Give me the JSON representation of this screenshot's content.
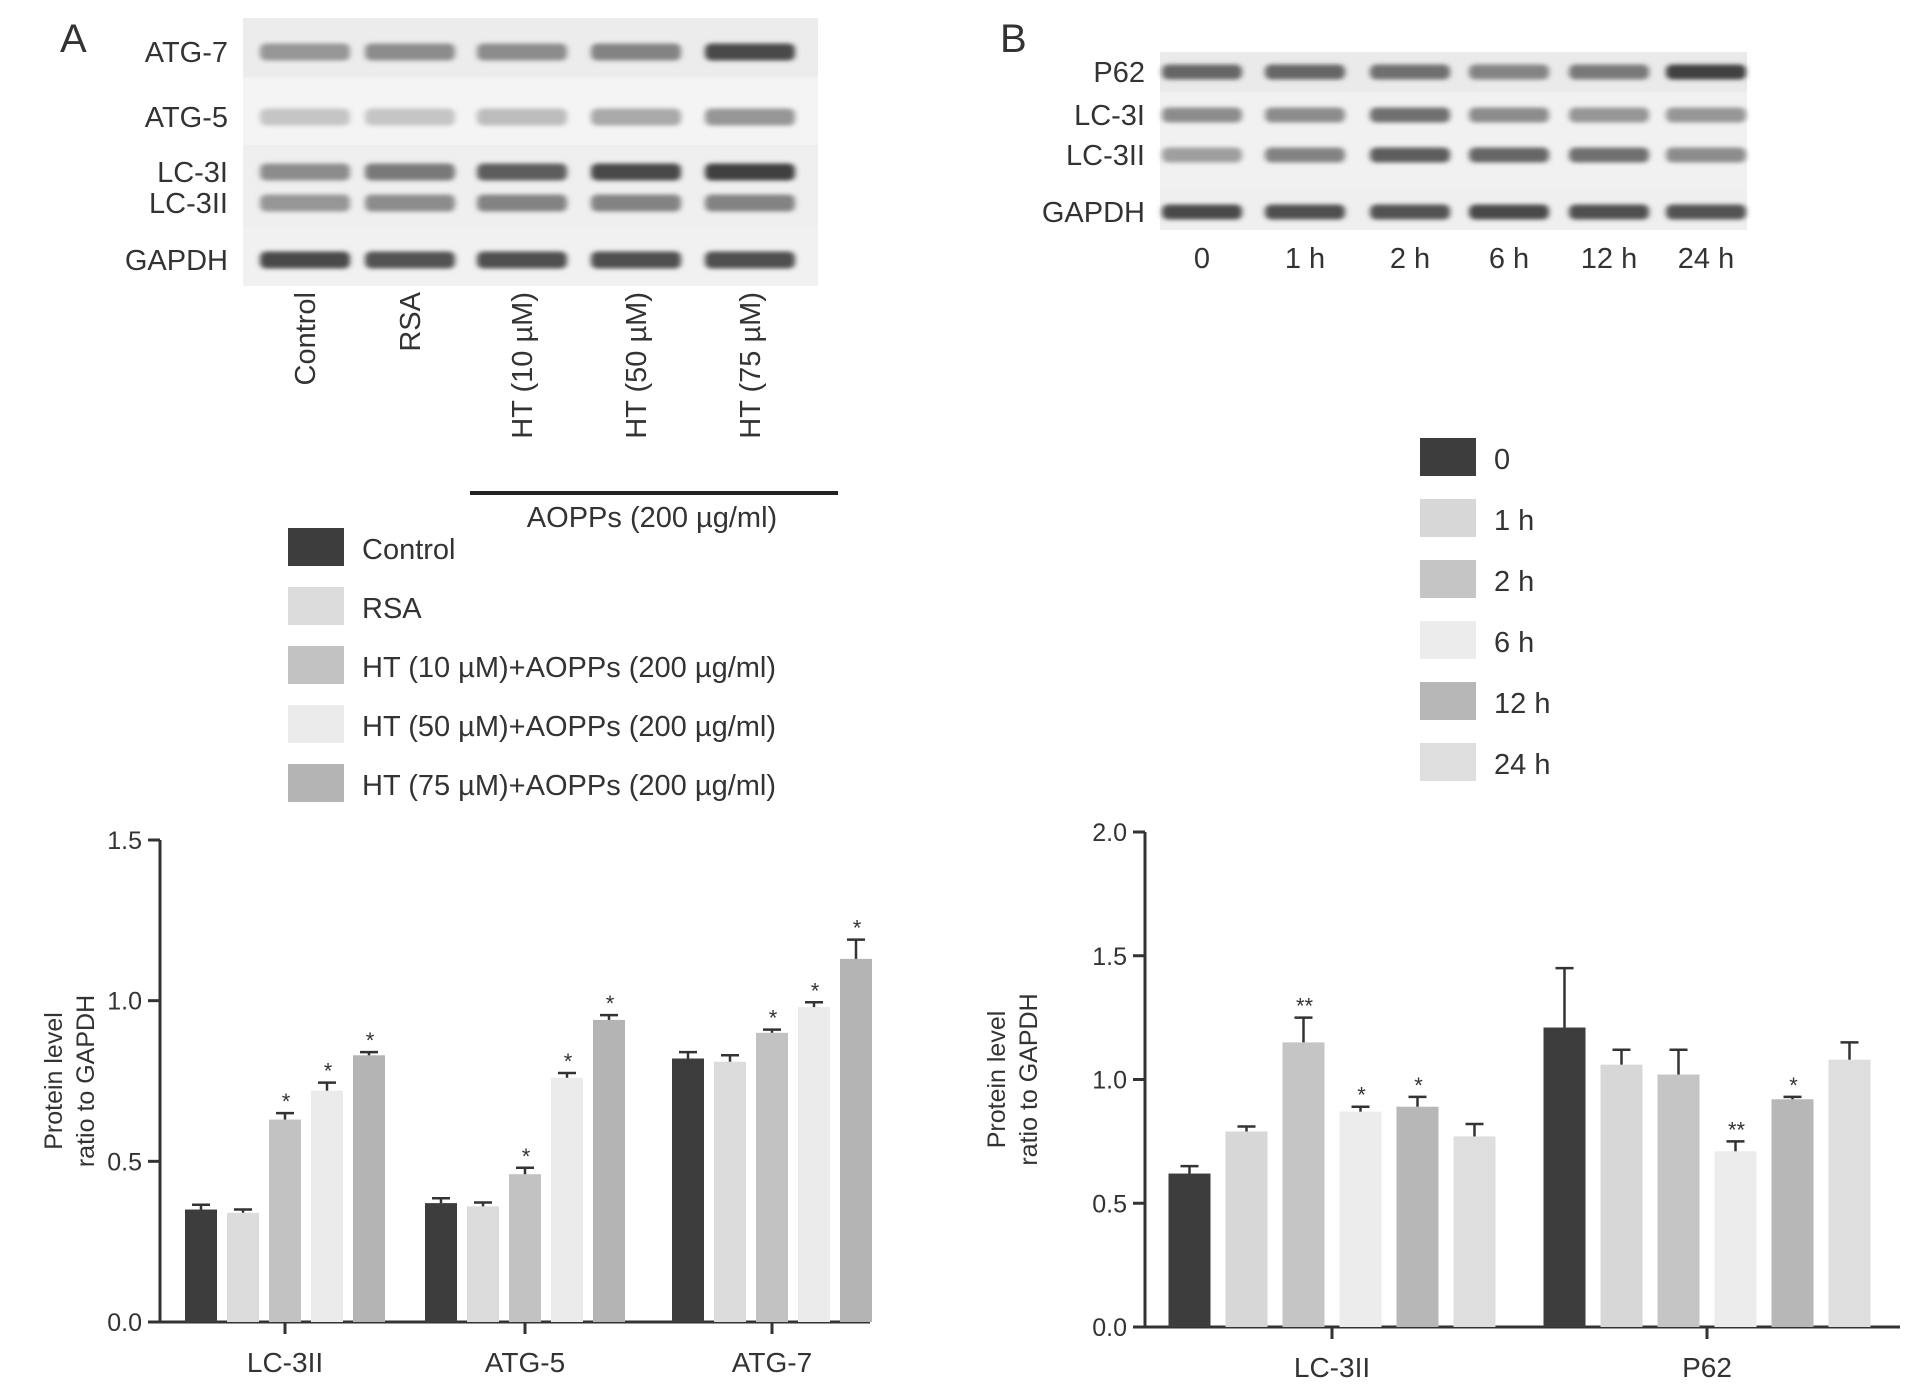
{
  "panelA": {
    "letter": "A",
    "blot_labels": [
      "ATG-7",
      "ATG-5",
      "LC-3I",
      "LC-3II",
      "GAPDH"
    ],
    "lane_labels": [
      "Control",
      "RSA",
      "HT (10 µM)",
      "HT (50 µM)",
      "HT (75 µM)"
    ],
    "bracket_label": "AOPPs (200 µg/ml)",
    "blot_intensity": {
      "ATG-7": [
        0.45,
        0.5,
        0.5,
        0.55,
        0.85
      ],
      "ATG-5": [
        0.2,
        0.2,
        0.25,
        0.35,
        0.45
      ],
      "LC-3I": [
        0.5,
        0.6,
        0.75,
        0.85,
        0.9
      ],
      "LC-3II": [
        0.45,
        0.5,
        0.55,
        0.55,
        0.55
      ],
      "GAPDH": [
        0.85,
        0.8,
        0.82,
        0.82,
        0.82
      ]
    },
    "legend": [
      {
        "label": "Control",
        "color": "#3d3d3d"
      },
      {
        "label": "RSA",
        "color": "#dcdcdc"
      },
      {
        "label": "HT (10 µM)+AOPPs (200 µg/ml)",
        "color": "#c2c2c2"
      },
      {
        "label": "HT (50 µM)+AOPPs (200 µg/ml)",
        "color": "#ebebeb"
      },
      {
        "label": "HT (75 µM)+AOPPs (200 µg/ml)",
        "color": "#b4b4b4"
      }
    ]
  },
  "panelB": {
    "letter": "B",
    "blot_labels": [
      "P62",
      "LC-3I",
      "LC-3II",
      "GAPDH"
    ],
    "lane_labels": [
      "0",
      "1 h",
      "2 h",
      "6 h",
      "12 h",
      "24 h"
    ],
    "blot_intensity": {
      "P62": [
        0.7,
        0.7,
        0.65,
        0.55,
        0.6,
        0.9
      ],
      "LC-3I": [
        0.5,
        0.5,
        0.65,
        0.5,
        0.45,
        0.45
      ],
      "LC-3II": [
        0.4,
        0.55,
        0.75,
        0.7,
        0.65,
        0.5
      ],
      "GAPDH": [
        0.85,
        0.82,
        0.8,
        0.85,
        0.82,
        0.8
      ]
    },
    "legend": [
      {
        "label": "0",
        "color": "#3d3d3d"
      },
      {
        "label": "1 h",
        "color": "#d7d7d7"
      },
      {
        "label": "2 h",
        "color": "#c5c5c5"
      },
      {
        "label": "6 h",
        "color": "#ececec"
      },
      {
        "label": "12 h",
        "color": "#b7b7b7"
      },
      {
        "label": "24 h",
        "color": "#dedede"
      }
    ]
  },
  "chart_data": [
    {
      "type": "bar",
      "title": "",
      "xlabel": "",
      "ylabel": "Protein level ratio to GAPDH",
      "ylabel_lines": [
        "Protein level",
        "ratio to GAPDH"
      ],
      "ylim": [
        0,
        1.5
      ],
      "yticks": [
        "0.0",
        "0.5",
        "1.0",
        "1.5"
      ],
      "categories": [
        "LC-3II",
        "ATG-5",
        "ATG-7"
      ],
      "series": [
        {
          "name": "Control",
          "values": [
            0.35,
            0.37,
            0.82
          ],
          "errors": [
            0.015,
            0.015,
            0.02
          ],
          "sig": [
            "",
            "",
            ""
          ]
        },
        {
          "name": "RSA",
          "values": [
            0.34,
            0.36,
            0.81
          ],
          "errors": [
            0.01,
            0.012,
            0.02
          ],
          "sig": [
            "",
            "",
            ""
          ]
        },
        {
          "name": "HT (10 µM)+AOPPs (200 µg/ml)",
          "values": [
            0.63,
            0.46,
            0.9
          ],
          "errors": [
            0.02,
            0.02,
            0.01
          ],
          "sig": [
            "*",
            "*",
            "*"
          ]
        },
        {
          "name": "HT (50 µM)+AOPPs (200 µg/ml)",
          "values": [
            0.72,
            0.76,
            0.98
          ],
          "errors": [
            0.025,
            0.015,
            0.015
          ],
          "sig": [
            "*",
            "*",
            "*"
          ]
        },
        {
          "name": "HT (75 µM)+AOPPs (200 µg/ml)",
          "values": [
            0.83,
            0.94,
            1.13
          ],
          "errors": [
            0.01,
            0.015,
            0.06
          ],
          "sig": [
            "*",
            "*",
            "*"
          ]
        }
      ]
    },
    {
      "type": "bar",
      "title": "",
      "xlabel": "",
      "ylabel": "Protein level ratio to GAPDH",
      "ylabel_lines": [
        "Protein level",
        "ratio to GAPDH"
      ],
      "ylim": [
        0,
        2.0
      ],
      "yticks": [
        "0.0",
        "0.5",
        "1.0",
        "1.5",
        "2.0"
      ],
      "categories": [
        "LC-3II",
        "P62"
      ],
      "series": [
        {
          "name": "0",
          "values": [
            0.62,
            1.21
          ],
          "errors": [
            0.03,
            0.24
          ],
          "sig": [
            "",
            ""
          ]
        },
        {
          "name": "1 h",
          "values": [
            0.79,
            1.06
          ],
          "errors": [
            0.02,
            0.06
          ],
          "sig": [
            "",
            ""
          ]
        },
        {
          "name": "2 h",
          "values": [
            1.15,
            1.02
          ],
          "errors": [
            0.1,
            0.1
          ],
          "sig": [
            "**",
            ""
          ]
        },
        {
          "name": "6 h",
          "values": [
            0.87,
            0.71
          ],
          "errors": [
            0.02,
            0.04
          ],
          "sig": [
            "*",
            "**"
          ]
        },
        {
          "name": "12 h",
          "values": [
            0.89,
            0.92
          ],
          "errors": [
            0.04,
            0.01
          ],
          "sig": [
            "*",
            "*"
          ]
        },
        {
          "name": "24 h",
          "values": [
            0.77,
            1.08
          ],
          "errors": [
            0.05,
            0.07
          ],
          "sig": [
            "",
            ""
          ]
        }
      ]
    }
  ]
}
